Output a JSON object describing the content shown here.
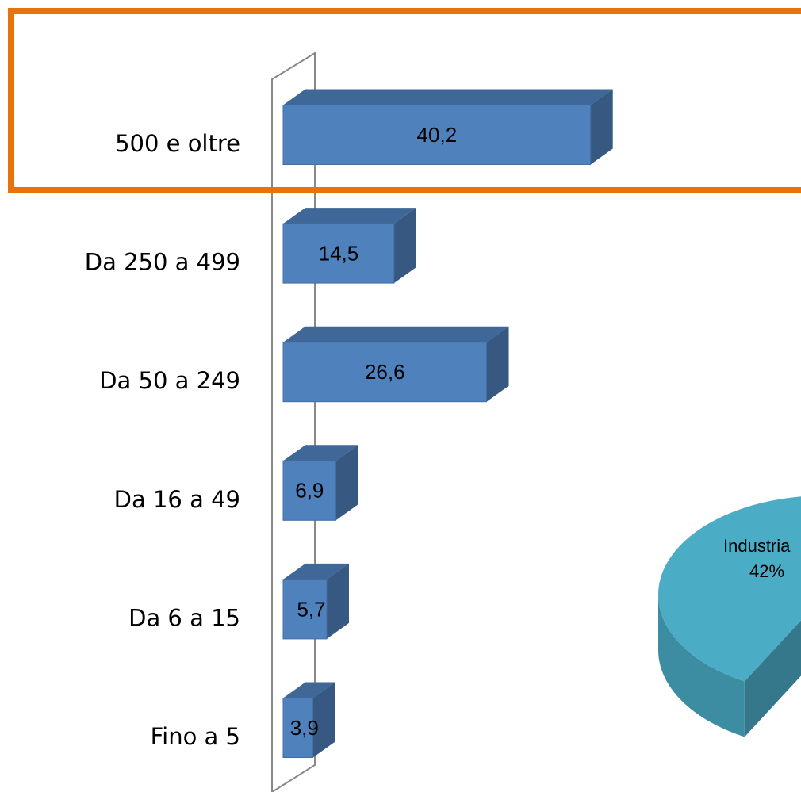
{
  "chart_data": [
    {
      "type": "bar3d",
      "categories": [
        "500 e oltre",
        "Da 250 a 499",
        "Da 50 a 249",
        "Da 16 a 49",
        "Da 6 a 15",
        "Fino a 5"
      ],
      "values": [
        40.2,
        14.5,
        26.6,
        6.9,
        5.7,
        3.9
      ],
      "value_labels": [
        "40,2",
        "14,5",
        "26,6",
        "6,9",
        "5,7",
        "3,9"
      ],
      "color": "#4f81bd",
      "xlim": [
        0,
        45
      ]
    },
    {
      "type": "pie3d",
      "categories": [
        "Industria"
      ],
      "values": [
        42
      ],
      "value_labels": [
        "42%"
      ],
      "color": "#4bacc6"
    }
  ]
}
